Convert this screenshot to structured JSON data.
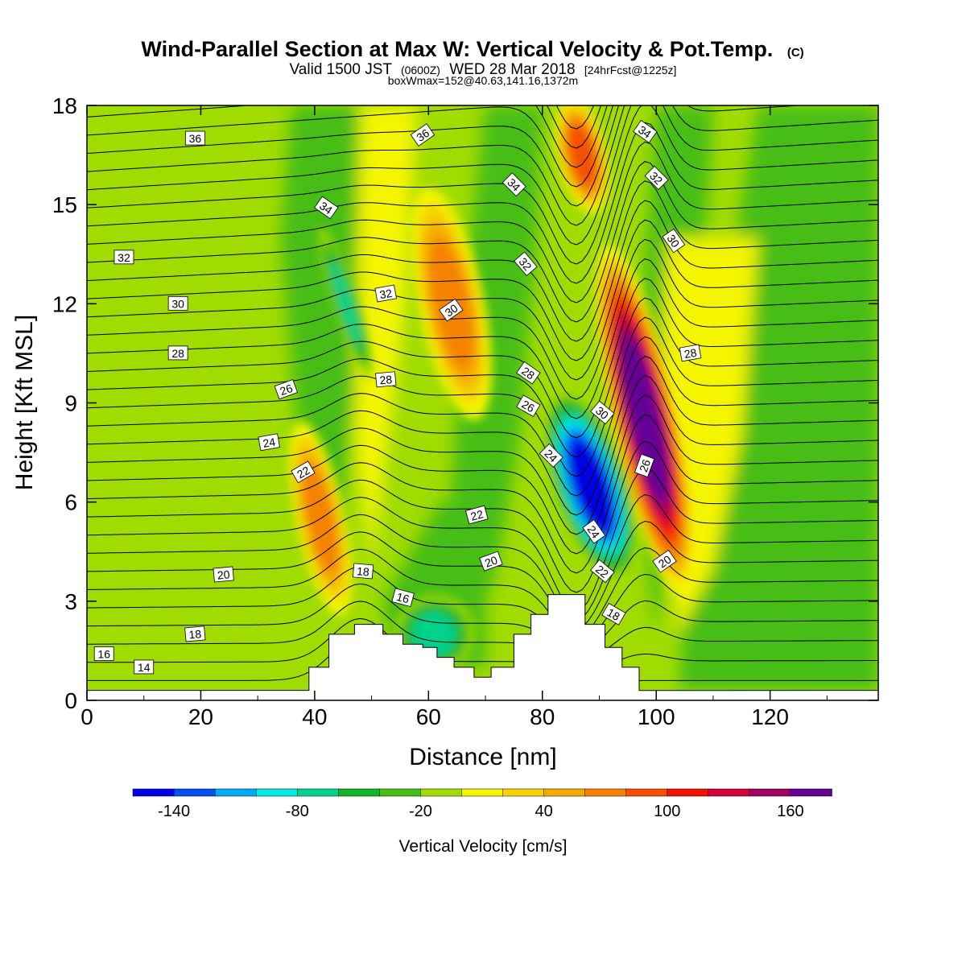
{
  "header": {
    "title_main": "Wind-Parallel Section at Max W: Vertical Velocity & Pot.Temp.",
    "title_mark": "(C)",
    "valid_prefix": "Valid 1500 JST",
    "valid_utc": "(0600Z)",
    "valid_date": "WED 28 Mar 2018",
    "valid_fcst": "[24hrFcst@1225z]",
    "box_info": "boxWmax=152@40.63,141.16,1372m"
  },
  "colors": {
    "palette": [
      "#0000e6",
      "#0050f0",
      "#00aaf5",
      "#00ebe6",
      "#00d28c",
      "#14b428",
      "#46be14",
      "#a0dc00",
      "#f5f500",
      "#f5d200",
      "#f5aa00",
      "#f58200",
      "#f55000",
      "#f01400",
      "#d2003c",
      "#a00064",
      "#640096"
    ],
    "terrain": "#ffffff",
    "contour": "#000000"
  },
  "chart_data": {
    "type": "heatmap",
    "xlabel": "Distance [nm]",
    "ylabel": "Height [Kft MSL]",
    "xlim": [
      0,
      139
    ],
    "ylim": [
      0,
      18
    ],
    "x_ticks": [
      "0",
      "20",
      "40",
      "60",
      "80",
      "100",
      "120"
    ],
    "y_ticks": [
      "0",
      "3",
      "6",
      "9",
      "12",
      "15",
      "18"
    ],
    "colorbar": {
      "label": "Vertical Velocity [cm/s]",
      "tick_labels": [
        "-140",
        "-80",
        "-20",
        "40",
        "100",
        "160"
      ],
      "levels": [
        -160,
        -140,
        -120,
        -100,
        -80,
        -60,
        -40,
        -20,
        0,
        20,
        40,
        60,
        80,
        100,
        120,
        140,
        160,
        180
      ]
    },
    "vertical_velocity_features": [
      {
        "kind": "updraft",
        "peak": 160,
        "x_range": [
          94,
          102
        ],
        "z_range": [
          4,
          13
        ]
      },
      {
        "kind": "downdraft",
        "peak": -140,
        "x_range": [
          84,
          93
        ],
        "z_range": [
          4,
          9
        ]
      },
      {
        "kind": "updraft",
        "peak": 60,
        "x_range": [
          38,
          44
        ],
        "z_range": [
          3,
          8
        ]
      },
      {
        "kind": "updraft",
        "peak": 60,
        "x_range": [
          60,
          68
        ],
        "z_range": [
          9,
          15
        ]
      },
      {
        "kind": "updraft",
        "peak": 80,
        "x_range": [
          84,
          90
        ],
        "z_range": [
          15,
          18
        ]
      },
      {
        "kind": "downdraft",
        "peak": -60,
        "x_range": [
          44,
          47
        ],
        "z_range": [
          10,
          14
        ]
      },
      {
        "kind": "downdraft",
        "peak": -60,
        "x_range": [
          56,
          66
        ],
        "z_range": [
          1,
          3
        ]
      }
    ],
    "terrain_profile": [
      [
        39,
        0.3
      ],
      [
        39,
        1.0
      ],
      [
        42.5,
        1.0
      ],
      [
        42.5,
        2.0
      ],
      [
        47,
        2.0
      ],
      [
        47,
        2.3
      ],
      [
        52,
        2.3
      ],
      [
        52,
        2.0
      ],
      [
        55.5,
        2.0
      ],
      [
        55.5,
        1.7
      ],
      [
        59,
        1.7
      ],
      [
        59,
        1.6
      ],
      [
        61.5,
        1.6
      ],
      [
        61.5,
        1.3
      ],
      [
        64.5,
        1.3
      ],
      [
        64.5,
        1.0
      ],
      [
        68,
        1.0
      ],
      [
        68,
        0.7
      ],
      [
        71,
        0.7
      ],
      [
        71,
        1.0
      ],
      [
        75,
        1.0
      ],
      [
        75,
        2.0
      ],
      [
        78,
        2.0
      ],
      [
        78,
        2.6
      ],
      [
        81,
        2.6
      ],
      [
        81,
        3.2
      ],
      [
        87.5,
        3.2
      ],
      [
        87.5,
        2.3
      ],
      [
        91,
        2.3
      ],
      [
        91,
        1.6
      ],
      [
        94,
        1.6
      ],
      [
        94,
        1.0
      ],
      [
        97,
        1.0
      ],
      [
        97,
        0.3
      ]
    ],
    "theta_contour_labels": [
      {
        "text": "36",
        "x": 19,
        "z": 17.0,
        "angle": 0
      },
      {
        "text": "36",
        "x": 59,
        "z": 17.1,
        "angle": -35
      },
      {
        "text": "34",
        "x": 42,
        "z": 14.9,
        "angle": 35
      },
      {
        "text": "34",
        "x": 75,
        "z": 15.6,
        "angle": 45
      },
      {
        "text": "34",
        "x": 98,
        "z": 17.2,
        "angle": 35
      },
      {
        "text": "32",
        "x": 6.5,
        "z": 13.4,
        "angle": 0
      },
      {
        "text": "32",
        "x": 52.5,
        "z": 12.3,
        "angle": -10
      },
      {
        "text": "32",
        "x": 77,
        "z": 13.2,
        "angle": 50
      },
      {
        "text": "32",
        "x": 100,
        "z": 15.8,
        "angle": 45
      },
      {
        "text": "30",
        "x": 16,
        "z": 12.0,
        "angle": 0
      },
      {
        "text": "30",
        "x": 64,
        "z": 11.8,
        "angle": -35
      },
      {
        "text": "30",
        "x": 103,
        "z": 13.9,
        "angle": 55
      },
      {
        "text": "30",
        "x": 90.5,
        "z": 8.7,
        "angle": 40
      },
      {
        "text": "28",
        "x": 16,
        "z": 10.5,
        "angle": 0
      },
      {
        "text": "28",
        "x": 52.5,
        "z": 9.7,
        "angle": -5
      },
      {
        "text": "28",
        "x": 77.5,
        "z": 9.9,
        "angle": 35
      },
      {
        "text": "28",
        "x": 106,
        "z": 10.5,
        "angle": -10
      },
      {
        "text": "26",
        "x": 35,
        "z": 9.4,
        "angle": -20
      },
      {
        "text": "26",
        "x": 77.5,
        "z": 8.9,
        "angle": 30
      },
      {
        "text": "26",
        "x": 98,
        "z": 7.1,
        "angle": -70
      },
      {
        "text": "24",
        "x": 32,
        "z": 7.8,
        "angle": -10
      },
      {
        "text": "24",
        "x": 81.5,
        "z": 7.4,
        "angle": 45
      },
      {
        "text": "24",
        "x": 89,
        "z": 5.1,
        "angle": 55
      },
      {
        "text": "22",
        "x": 38,
        "z": 6.9,
        "angle": -30
      },
      {
        "text": "22",
        "x": 68.5,
        "z": 5.6,
        "angle": -15
      },
      {
        "text": "22",
        "x": 90.5,
        "z": 3.9,
        "angle": 40
      },
      {
        "text": "20",
        "x": 24,
        "z": 3.8,
        "angle": -5
      },
      {
        "text": "20",
        "x": 71,
        "z": 4.2,
        "angle": -20
      },
      {
        "text": "20",
        "x": 101.5,
        "z": 4.2,
        "angle": -35
      },
      {
        "text": "18",
        "x": 19,
        "z": 2.0,
        "angle": -5
      },
      {
        "text": "18",
        "x": 48.5,
        "z": 3.9,
        "angle": 5
      },
      {
        "text": "18",
        "x": 92.5,
        "z": 2.6,
        "angle": 30
      },
      {
        "text": "16",
        "x": 3,
        "z": 1.4,
        "angle": 0
      },
      {
        "text": "16",
        "x": 55.5,
        "z": 3.1,
        "angle": 15
      },
      {
        "text": "14",
        "x": 10,
        "z": 1.0,
        "angle": 0
      }
    ]
  }
}
